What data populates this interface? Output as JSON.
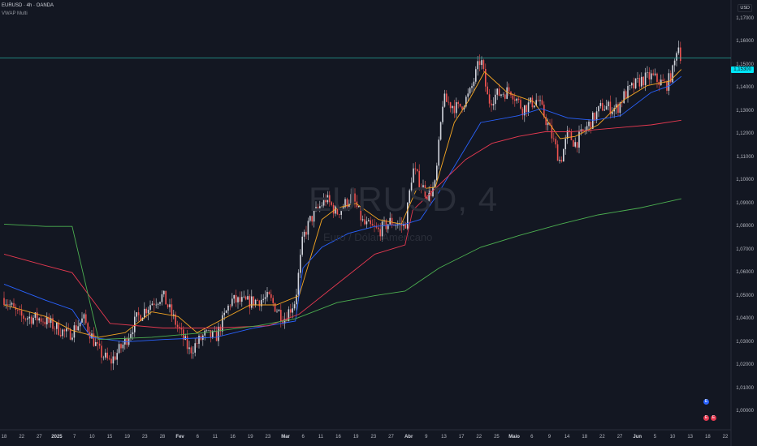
{
  "header": {
    "symbol_line": "EURUSD · 4h · OANDA",
    "indicator_line": "VWAP Multi"
  },
  "currency_label": "USD",
  "current_price_label": "1,15300",
  "watermark": {
    "symbol": "EURUSD, 4",
    "description": "Euro / Dólar Americano"
  },
  "colors": {
    "background": "#131722",
    "up_candle": "#d1d4dc",
    "down_candle": "#ef5350",
    "vwap_orange": "#f5a623",
    "vwap_blue": "#2962ff",
    "vwap_red": "#e53950",
    "vwap_green": "#4caf50",
    "price_line": "#26a69a",
    "price_tag": "#00e5f5"
  },
  "chart_data": {
    "type": "line",
    "title": "",
    "xlabel": "",
    "ylabel": "",
    "ylim": [
      0.995,
      1.175
    ],
    "y_ticks": [
      "1,17000",
      "1,16000",
      "1,15000",
      "1,14000",
      "1,13000",
      "1,12000",
      "1,11000",
      "1,10000",
      "1,09000",
      "1,08000",
      "1,07000",
      "1,06000",
      "1,05000",
      "1,04000",
      "1,03000",
      "1,02000",
      "1,01000",
      "1,00000"
    ],
    "x_ticks": [
      "18",
      "22",
      "27",
      "2025",
      "7",
      "10",
      "15",
      "19",
      "23",
      "28",
      "Fev",
      "6",
      "11",
      "16",
      "19",
      "23",
      "Mar",
      "6",
      "11",
      "16",
      "19",
      "23",
      "27",
      "Abr",
      "9",
      "13",
      "17",
      "22",
      "25",
      "Maio",
      "6",
      "9",
      "14",
      "18",
      "22",
      "27",
      "Jun",
      "5",
      "10",
      "13",
      "18",
      "22"
    ],
    "price": [
      [
        "2024-12-16",
        1.049
      ],
      [
        "2024-12-20",
        1.041
      ],
      [
        "2024-12-26",
        1.04
      ],
      [
        "2025-01-02",
        1.033
      ],
      [
        "2025-01-06",
        1.04
      ],
      [
        "2025-01-10",
        1.026
      ],
      [
        "2025-01-13",
        1.021
      ],
      [
        "2025-01-17",
        1.03
      ],
      [
        "2025-01-20",
        1.04
      ],
      [
        "2025-01-24",
        1.047
      ],
      [
        "2025-01-27",
        1.05
      ],
      [
        "2025-01-31",
        1.036
      ],
      [
        "2025-02-03",
        1.026
      ],
      [
        "2025-02-07",
        1.033
      ],
      [
        "2025-02-10",
        1.032
      ],
      [
        "2025-02-14",
        1.048
      ],
      [
        "2025-02-18",
        1.047
      ],
      [
        "2025-02-21",
        1.048
      ],
      [
        "2025-02-24",
        1.049
      ],
      [
        "2025-02-28",
        1.04
      ],
      [
        "2025-03-03",
        1.048
      ],
      [
        "2025-03-05",
        1.075
      ],
      [
        "2025-03-07",
        1.083
      ],
      [
        "2025-03-11",
        1.092
      ],
      [
        "2025-03-14",
        1.086
      ],
      [
        "2025-03-18",
        1.093
      ],
      [
        "2025-03-21",
        1.081
      ],
      [
        "2025-03-25",
        1.078
      ],
      [
        "2025-03-28",
        1.082
      ],
      [
        "2025-04-01",
        1.08
      ],
      [
        "2025-04-03",
        1.105
      ],
      [
        "2025-04-07",
        1.093
      ],
      [
        "2025-04-09",
        1.098
      ],
      [
        "2025-04-11",
        1.135
      ],
      [
        "2025-04-15",
        1.131
      ],
      [
        "2025-04-18",
        1.137
      ],
      [
        "2025-04-21",
        1.153
      ],
      [
        "2025-04-23",
        1.134
      ],
      [
        "2025-04-25",
        1.137
      ],
      [
        "2025-04-29",
        1.139
      ],
      [
        "2025-05-02",
        1.131
      ],
      [
        "2025-05-06",
        1.135
      ],
      [
        "2025-05-09",
        1.123
      ],
      [
        "2025-05-12",
        1.108
      ],
      [
        "2025-05-14",
        1.12
      ],
      [
        "2025-05-16",
        1.116
      ],
      [
        "2025-05-20",
        1.125
      ],
      [
        "2025-05-23",
        1.132
      ],
      [
        "2025-05-27",
        1.131
      ],
      [
        "2025-05-29",
        1.137
      ],
      [
        "2025-06-02",
        1.143
      ],
      [
        "2025-06-05",
        1.145
      ],
      [
        "2025-06-09",
        1.141
      ],
      [
        "2025-06-11",
        1.148
      ],
      [
        "2025-06-12",
        1.16
      ],
      [
        "2025-06-13",
        1.153
      ]
    ],
    "series": [
      {
        "color": "#f5a623",
        "values": [
          [
            "2024-12-16",
            1.046
          ],
          [
            "2024-12-27",
            1.041
          ],
          [
            "2025-01-03",
            1.035
          ],
          [
            "2025-01-10",
            1.032
          ],
          [
            "2025-01-17",
            1.034
          ],
          [
            "2025-01-24",
            1.043
          ],
          [
            "2025-01-31",
            1.041
          ],
          [
            "2025-02-05",
            1.034
          ],
          [
            "2025-02-12",
            1.04
          ],
          [
            "2025-02-19",
            1.046
          ],
          [
            "2025-02-26",
            1.046
          ],
          [
            "2025-03-04",
            1.05
          ],
          [
            "2025-03-10",
            1.083
          ],
          [
            "2025-03-14",
            1.088
          ],
          [
            "2025-03-19",
            1.09
          ],
          [
            "2025-03-25",
            1.083
          ],
          [
            "2025-03-31",
            1.081
          ],
          [
            "2025-04-04",
            1.096
          ],
          [
            "2025-04-09",
            1.097
          ],
          [
            "2025-04-14",
            1.125
          ],
          [
            "2025-04-18",
            1.135
          ],
          [
            "2025-04-22",
            1.147
          ],
          [
            "2025-04-28",
            1.138
          ],
          [
            "2025-05-05",
            1.134
          ],
          [
            "2025-05-12",
            1.118
          ],
          [
            "2025-05-16",
            1.119
          ],
          [
            "2025-05-22",
            1.124
          ],
          [
            "2025-05-29",
            1.135
          ],
          [
            "2025-06-04",
            1.141
          ],
          [
            "2025-06-10",
            1.143
          ],
          [
            "2025-06-13",
            1.148
          ]
        ]
      },
      {
        "color": "#2962ff",
        "values": [
          [
            "2024-12-16",
            1.055
          ],
          [
            "2024-12-27",
            1.048
          ],
          [
            "2025-01-03",
            1.044
          ],
          [
            "2025-01-08",
            1.032
          ],
          [
            "2025-01-17",
            1.03
          ],
          [
            "2025-01-27",
            1.031
          ],
          [
            "2025-02-10",
            1.032
          ],
          [
            "2025-02-20",
            1.036
          ],
          [
            "2025-03-03",
            1.039
          ],
          [
            "2025-03-05",
            1.062
          ],
          [
            "2025-03-10",
            1.071
          ],
          [
            "2025-03-17",
            1.077
          ],
          [
            "2025-03-24",
            1.08
          ],
          [
            "2025-04-01",
            1.081
          ],
          [
            "2025-04-05",
            1.083
          ],
          [
            "2025-04-10",
            1.095
          ],
          [
            "2025-04-21",
            1.125
          ],
          [
            "2025-05-01",
            1.128
          ],
          [
            "2025-05-07",
            1.131
          ],
          [
            "2025-05-14",
            1.127
          ],
          [
            "2025-05-21",
            1.126
          ],
          [
            "2025-05-28",
            1.128
          ],
          [
            "2025-06-01",
            1.133
          ],
          [
            "2025-06-05",
            1.138
          ],
          [
            "2025-06-10",
            1.141
          ],
          [
            "2025-06-13",
            1.145
          ]
        ]
      },
      {
        "color": "#e53950",
        "values": [
          [
            "2024-12-16",
            1.068
          ],
          [
            "2024-12-27",
            1.063
          ],
          [
            "2025-01-03",
            1.06
          ],
          [
            "2025-01-13",
            1.038
          ],
          [
            "2025-01-27",
            1.036
          ],
          [
            "2025-02-10",
            1.036
          ],
          [
            "2025-02-24",
            1.037
          ],
          [
            "2025-03-04",
            1.042
          ],
          [
            "2025-03-14",
            1.055
          ],
          [
            "2025-03-24",
            1.068
          ],
          [
            "2025-04-01",
            1.072
          ],
          [
            "2025-04-03",
            1.087
          ],
          [
            "2025-04-10",
            1.098
          ],
          [
            "2025-04-17",
            1.109
          ],
          [
            "2025-04-24",
            1.116
          ],
          [
            "2025-05-01",
            1.119
          ],
          [
            "2025-05-08",
            1.121
          ],
          [
            "2025-05-15",
            1.121
          ],
          [
            "2025-05-22",
            1.122
          ],
          [
            "2025-05-29",
            1.123
          ],
          [
            "2025-06-05",
            1.124
          ],
          [
            "2025-06-13",
            1.126
          ]
        ]
      },
      {
        "color": "#4caf50",
        "values": [
          [
            "2024-12-16",
            1.081
          ],
          [
            "2024-12-27",
            1.08
          ],
          [
            "2025-01-03",
            1.08
          ],
          [
            "2025-01-10",
            1.031
          ],
          [
            "2025-01-24",
            1.032
          ],
          [
            "2025-02-07",
            1.034
          ],
          [
            "2025-02-21",
            1.037
          ],
          [
            "2025-03-03",
            1.04
          ],
          [
            "2025-03-14",
            1.047
          ],
          [
            "2025-03-24",
            1.05
          ],
          [
            "2025-04-01",
            1.052
          ],
          [
            "2025-04-10",
            1.062
          ],
          [
            "2025-04-21",
            1.071
          ],
          [
            "2025-05-01",
            1.076
          ],
          [
            "2025-05-12",
            1.081
          ],
          [
            "2025-05-22",
            1.085
          ],
          [
            "2025-06-02",
            1.088
          ],
          [
            "2025-06-13",
            1.092
          ]
        ]
      }
    ],
    "current_price": 1.153
  },
  "badges": [
    {
      "label": "E",
      "color": "#2962ff"
    },
    {
      "label": "E",
      "color": "#e53950"
    },
    {
      "label": "E",
      "color": "#e53950"
    }
  ]
}
